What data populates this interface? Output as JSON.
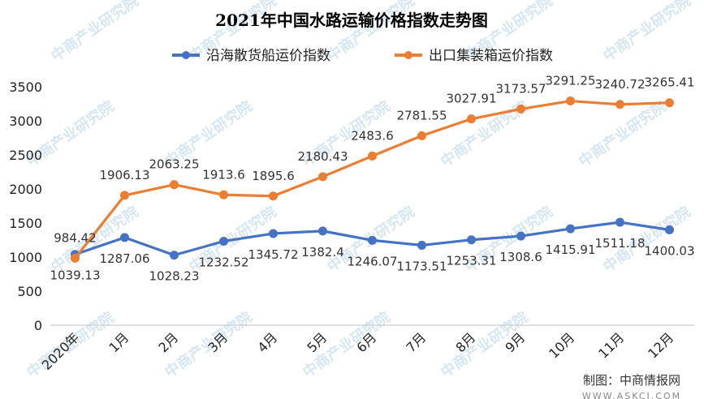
{
  "chart_data": {
    "type": "line",
    "title": "2021年中国水路运输价格指数走势图",
    "categories": [
      "2020年",
      "1月",
      "2月",
      "3月",
      "4月",
      "5月",
      "6月",
      "7月",
      "8月",
      "9月",
      "10月",
      "11月",
      "12月"
    ],
    "series": [
      {
        "name": "沿海散货船运价指数",
        "color": "#4472C4",
        "values": [
          1039.13,
          1287.06,
          1028.23,
          1232.52,
          1345.72,
          1382.4,
          1246.07,
          1173.51,
          1253.31,
          1308.6,
          1415.91,
          1511.18,
          1400.03
        ],
        "labels": [
          "1039.13",
          "1287.06",
          "1028.23",
          "1232.52",
          "1345.72",
          "1382.4",
          "1246.07",
          "1173.51",
          "1253.31",
          "1308.6",
          "1415.91",
          "1511.18",
          "1400.03"
        ]
      },
      {
        "name": "出口集装箱运价指数",
        "color": "#ED7D31",
        "values": [
          984.42,
          1906.13,
          2063.25,
          1913.6,
          1895.6,
          2180.43,
          2483.6,
          2781.55,
          3027.91,
          3173.57,
          3291.25,
          3240.72,
          3265.41
        ],
        "labels": [
          "984.42",
          "1906.13",
          "2063.25",
          "1913.6",
          "1895.6",
          "2180.43",
          "2483.6",
          "2781.55",
          "3027.91",
          "3173.57",
          "3291.25",
          "3240.72",
          "3265.41"
        ]
      }
    ],
    "ylim": [
      0,
      3500
    ],
    "yticks": [
      0,
      500,
      1000,
      1500,
      2000,
      2500,
      3000,
      3500
    ],
    "grid": false,
    "legend_position": "top"
  },
  "credit": "制图：中商情报网",
  "credit_url": "WWW.ASKCI.COM",
  "watermark": "中商产业研究院"
}
